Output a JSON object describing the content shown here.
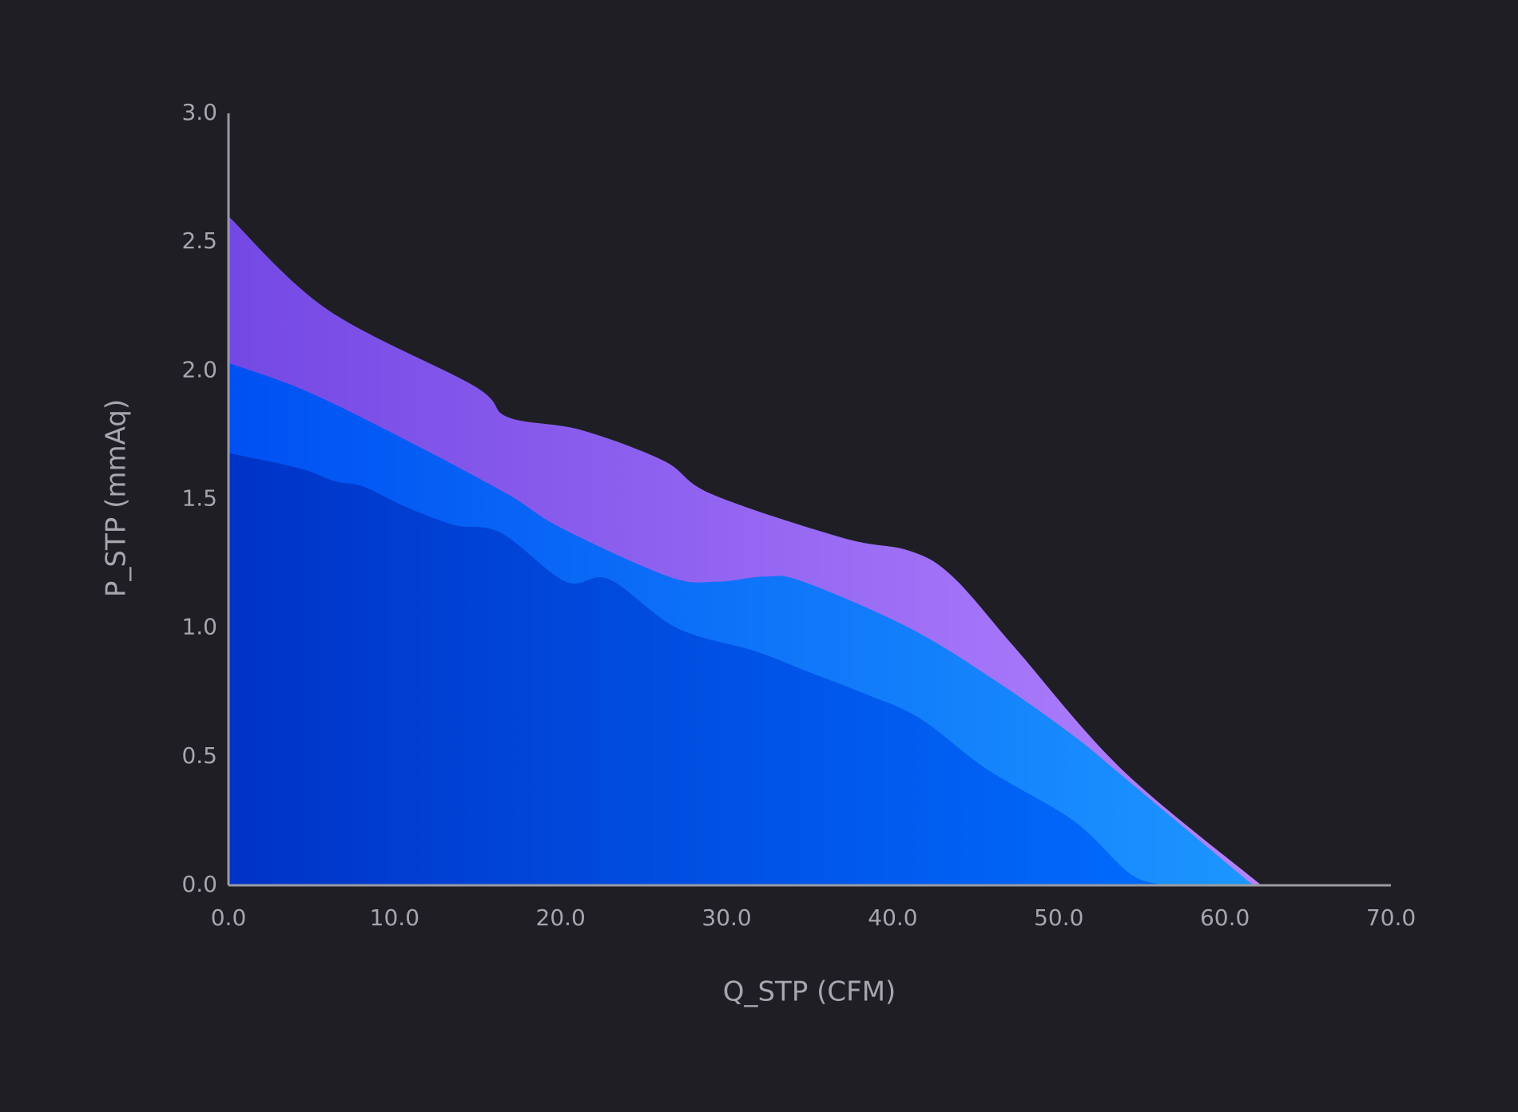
{
  "chart_data": {
    "type": "area",
    "x_label": "Q_STP (CFM)",
    "y_label": "P_STP (mmAq)",
    "series": [
      {
        "colors": [
          "#7448e4",
          "#b483ff"
        ],
        "x": [
          0,
          5.9,
          14.8,
          16.8,
          21.2,
          26.2,
          29.1,
          37,
          41,
          43.6,
          47.4,
          53.8,
          62.2
        ],
        "values": [
          2.6,
          2.24,
          1.94,
          1.82,
          1.77,
          1.65,
          1.52,
          1.35,
          1.3,
          1.2,
          0.92,
          0.45,
          0
        ]
      },
      {
        "colors": [
          "#0050f2",
          "#1c96ff"
        ],
        "x": [
          0,
          4.7,
          10.7,
          16.8,
          20,
          26.5,
          29.4,
          32.3,
          34.6,
          41,
          46.3,
          50.9,
          54.1,
          61.7
        ],
        "values": [
          2.03,
          1.92,
          1.73,
          1.52,
          1.39,
          1.2,
          1.18,
          1.2,
          1.18,
          1.0,
          0.79,
          0.58,
          0.41,
          0
        ]
      },
      {
        "colors": [
          "#0033c6",
          "#006cff"
        ],
        "x": [
          0,
          4.3,
          6.4,
          8.1,
          10.7,
          13.6,
          16.4,
          20.3,
          22.9,
          27,
          31.7,
          34.9,
          38.1,
          41.6,
          45.7,
          50.9,
          54.4,
          56.8
        ],
        "values": [
          1.68,
          1.62,
          1.57,
          1.55,
          1.47,
          1.4,
          1.37,
          1.18,
          1.19,
          1.0,
          0.91,
          0.83,
          0.75,
          0.65,
          0.45,
          0.25,
          0.04,
          0
        ]
      }
    ],
    "xlim": [
      0,
      70
    ],
    "xticks": [
      {
        "value": 0,
        "label": "0.0"
      },
      {
        "value": 10,
        "label": "10.0"
      },
      {
        "value": 20,
        "label": "20.0"
      },
      {
        "value": 30,
        "label": "30.0"
      },
      {
        "value": 40,
        "label": "40.0"
      },
      {
        "value": 50,
        "label": "50.0"
      },
      {
        "value": 60,
        "label": "60.0"
      },
      {
        "value": 70,
        "label": "70.0"
      }
    ],
    "ylim": [
      0,
      3
    ],
    "yticks": [
      {
        "value": 0,
        "label": "0.0"
      },
      {
        "value": 0.5,
        "label": "0.5"
      },
      {
        "value": 1,
        "label": "1.0"
      },
      {
        "value": 1.5,
        "label": "1.5"
      },
      {
        "value": 2,
        "label": "2.0"
      },
      {
        "value": 2.5,
        "label": "2.5"
      },
      {
        "value": 3,
        "label": "3.0"
      }
    ],
    "grid": false
  }
}
